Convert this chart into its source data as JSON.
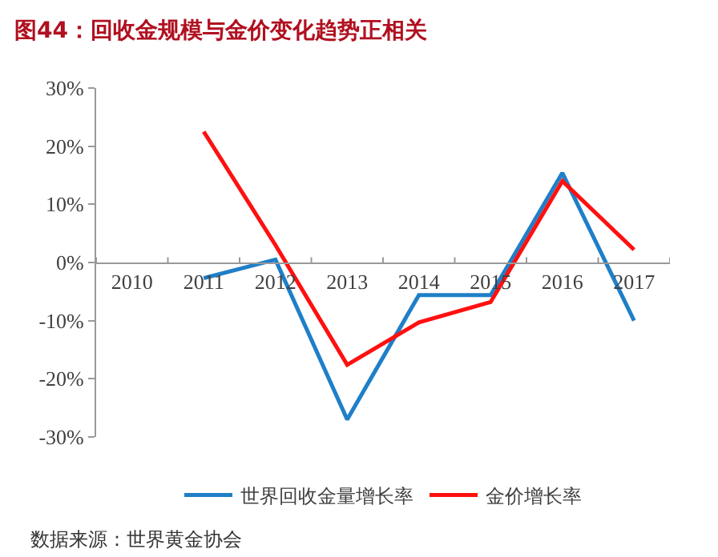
{
  "chart_data": {
    "type": "line",
    "title": "图44：回收金规模与金价变化趋势正相关",
    "categories": [
      "2010",
      "2011",
      "2012",
      "2013",
      "2014",
      "2015",
      "2016",
      "2017"
    ],
    "series": [
      {
        "name": "世界回收金量增长率",
        "color": "#1f7fc8",
        "values": [
          null,
          -2.7,
          0.5,
          -27,
          -5.6,
          -5.6,
          15.4,
          -10
        ]
      },
      {
        "name": "金价增长率",
        "color": "#ff1010",
        "values": [
          null,
          22.5,
          3,
          -17.6,
          -10.3,
          -6.8,
          14,
          2.2
        ]
      }
    ],
    "ylim": [
      -30,
      30
    ],
    "yticks": [
      {
        "value": 30,
        "label": "30%"
      },
      {
        "value": 20,
        "label": "20%"
      },
      {
        "value": 10,
        "label": "10%"
      },
      {
        "value": 0,
        "label": "0%"
      },
      {
        "value": -10,
        "label": "-10%"
      },
      {
        "value": -20,
        "label": "-20%"
      },
      {
        "value": -30,
        "label": "-30%"
      }
    ],
    "legend": "bottom",
    "marker": "none",
    "line_style": "solid",
    "annotations": [
      "数据来源：世界黄金协会"
    ]
  }
}
